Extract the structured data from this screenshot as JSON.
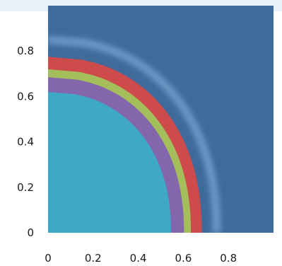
{
  "chart_data": {
    "type": "heatmap",
    "title": "",
    "xlabel": "",
    "ylabel": "",
    "xlim": [
      0,
      1
    ],
    "ylim": [
      0,
      1
    ],
    "xticks": [
      "0",
      "0.2",
      "0.4",
      "0.6",
      "0.8"
    ],
    "yticks": [
      "0",
      "0.2",
      "0.4",
      "0.6",
      "0.8"
    ],
    "grid": false,
    "legend": "none",
    "background_color": "#3f6a9a",
    "glow_radius": 0.85,
    "regions": [
      {
        "radius": 0.775,
        "color": "#cd4b4b"
      },
      {
        "radius": 0.72,
        "color": "#a3be5a"
      },
      {
        "radius": 0.685,
        "color": "#8466ad"
      },
      {
        "radius": 0.62,
        "color": "#3ea9c3"
      }
    ],
    "arc_shape": {
      "x_end_factor": 0.88,
      "exponent": 2.2
    }
  }
}
